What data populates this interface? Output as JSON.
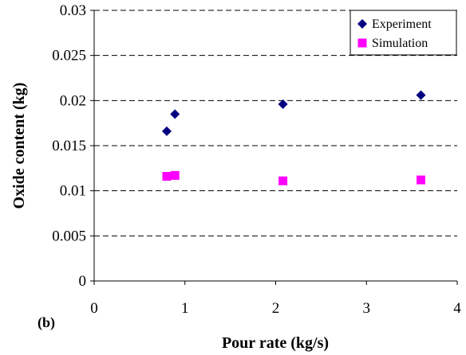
{
  "panel_label": "(b)",
  "chart_data": {
    "type": "scatter",
    "xlabel": "Pour rate (kg/s)",
    "ylabel": "Oxide content (kg)",
    "xlim": [
      0,
      4
    ],
    "ylim": [
      0,
      0.03
    ],
    "x_ticks": [
      0,
      1,
      2,
      3,
      4
    ],
    "x_tick_labels": [
      "0",
      "1",
      "2",
      "3",
      "4"
    ],
    "y_ticks": [
      0,
      0.005,
      0.01,
      0.015,
      0.02,
      0.025,
      0.03
    ],
    "y_tick_labels": [
      "0",
      "0.005",
      "0.01",
      "0.015",
      "0.02",
      "0.025",
      "0.03"
    ],
    "grid": "horizontal-dashed",
    "legend_position": "top-right",
    "series": [
      {
        "name": "Experiment",
        "marker": "diamond",
        "color": "#000080",
        "points": [
          {
            "x": 0.8,
            "y": 0.0166
          },
          {
            "x": 0.89,
            "y": 0.0185
          },
          {
            "x": 2.08,
            "y": 0.0196
          },
          {
            "x": 3.6,
            "y": 0.0206
          }
        ]
      },
      {
        "name": "Simulation",
        "marker": "square",
        "color": "#FF00FF",
        "points": [
          {
            "x": 0.8,
            "y": 0.0116
          },
          {
            "x": 0.89,
            "y": 0.0117
          },
          {
            "x": 2.08,
            "y": 0.0111
          },
          {
            "x": 3.6,
            "y": 0.0112
          }
        ]
      }
    ]
  }
}
